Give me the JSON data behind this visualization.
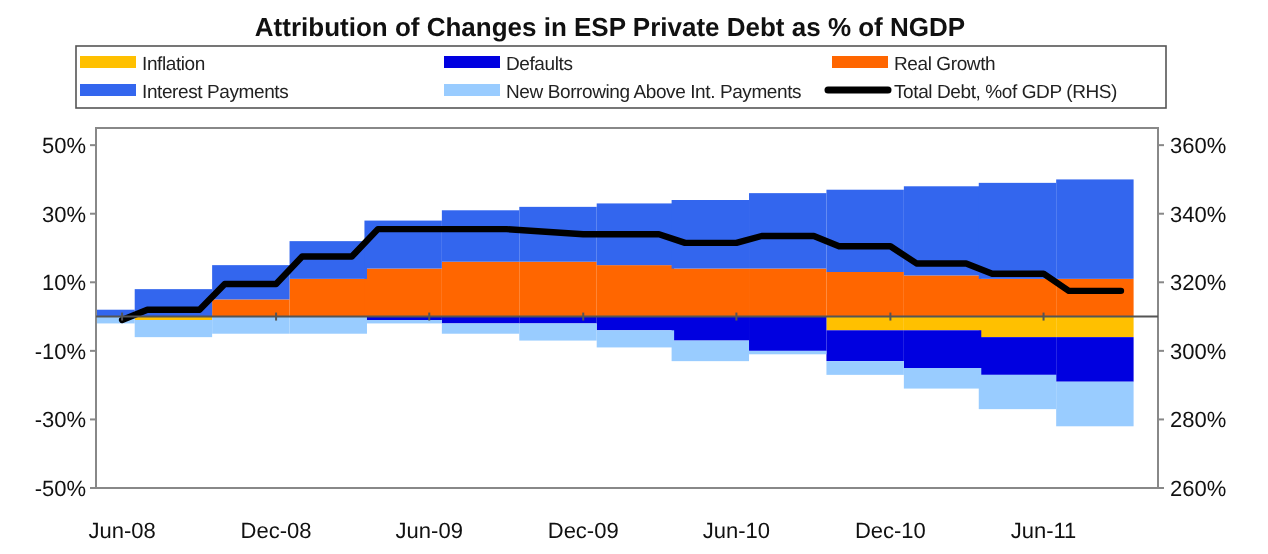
{
  "chart_data": {
    "type": "bar",
    "title": "Attribution of Changes in ESP Private Debt as % of NGDP",
    "x": [
      "2008-05",
      "2008-08",
      "2008-11",
      "2009-02",
      "2009-05",
      "2009-08",
      "2009-11",
      "2010-02",
      "2010-05",
      "2010-08",
      "2010-11",
      "2011-02",
      "2011-05",
      "2011-08"
    ],
    "stacked": true,
    "series": [
      {
        "name": "Inflation",
        "color": "#ffc000",
        "values": [
          0,
          -1,
          0,
          0,
          0,
          0,
          0,
          0,
          0,
          0,
          -4,
          -4,
          -6,
          -6
        ]
      },
      {
        "name": "Defaults",
        "color": "#0000e0",
        "values": [
          0,
          0,
          0,
          0,
          -1,
          -2,
          -2,
          -4,
          -7,
          -10,
          -9,
          -11,
          -11,
          -13
        ]
      },
      {
        "name": "Real Growth",
        "color": "#ff6600",
        "values": [
          0,
          0,
          5,
          11,
          14,
          16,
          16,
          15,
          14,
          14,
          13,
          12,
          11,
          11
        ]
      },
      {
        "name": "Interest Payments",
        "color": "#3366ee",
        "values": [
          2,
          8,
          10,
          11,
          14,
          15,
          16,
          18,
          20,
          22,
          24,
          26,
          28,
          29
        ]
      },
      {
        "name": "New Borrowing Above Int. Payments",
        "color": "#99ccff",
        "values": [
          -2,
          -5,
          -5,
          -5,
          -1,
          -3,
          -5,
          -5,
          -6,
          -1,
          -4,
          -6,
          -10,
          -13
        ]
      },
      {
        "name": "Total Debt, %of GDP (RHS)",
        "type": "line",
        "axis": "y2",
        "color": "#000000",
        "x": [
          "2008-06",
          "2008-07",
          "2008-09",
          "2008-10",
          "2008-12",
          "2009-01",
          "2009-03",
          "2009-04",
          "2009-09",
          "2009-12",
          "2010-03",
          "2010-04",
          "2010-06",
          "2010-07",
          "2010-09",
          "2010-10",
          "2010-12",
          "2011-01",
          "2011-03",
          "2011-04",
          "2011-06",
          "2011-07",
          "2011-09"
        ],
        "values": [
          309,
          312,
          312,
          319.5,
          319.5,
          327.5,
          327.5,
          335.5,
          335.5,
          334,
          334,
          331.5,
          331.5,
          333.5,
          333.5,
          330.5,
          330.5,
          325.5,
          325.5,
          322.5,
          322.5,
          317.5,
          317.5
        ]
      }
    ],
    "xlim": [
      "2008-05-01",
      "2011-10-15"
    ],
    "xticks": [
      {
        "value": "2008-06",
        "label": "Jun-08"
      },
      {
        "value": "2008-12",
        "label": "Dec-08"
      },
      {
        "value": "2009-06",
        "label": "Jun-09"
      },
      {
        "value": "2009-12",
        "label": "Dec-09"
      },
      {
        "value": "2010-06",
        "label": "Jun-10"
      },
      {
        "value": "2010-12",
        "label": "Dec-10"
      },
      {
        "value": "2011-06",
        "label": "Jun-11"
      }
    ],
    "ylim": [
      -50,
      55
    ],
    "yticks": [
      {
        "value": -50,
        "label": "-50%"
      },
      {
        "value": -30,
        "label": "-30%"
      },
      {
        "value": -10,
        "label": "-10%"
      },
      {
        "value": 10,
        "label": "10%"
      },
      {
        "value": 30,
        "label": "30%"
      },
      {
        "value": 50,
        "label": "50%"
      }
    ],
    "y2lim": [
      260,
      365
    ],
    "y2ticks": [
      {
        "value": 260,
        "label": "260%"
      },
      {
        "value": 280,
        "label": "280%"
      },
      {
        "value": 300,
        "label": "300%"
      },
      {
        "value": 320,
        "label": "320%"
      },
      {
        "value": 340,
        "label": "340%"
      },
      {
        "value": 360,
        "label": "360%"
      }
    ],
    "legend": "top",
    "grid": false
  }
}
